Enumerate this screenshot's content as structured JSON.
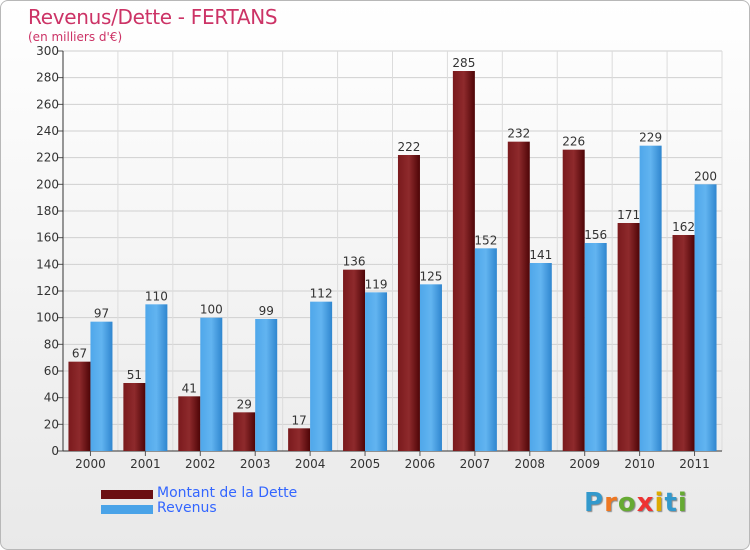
{
  "header": {
    "title": "Revenus/Dette - FERTANS",
    "subtitle": "(en milliers d'€)"
  },
  "chart_data": {
    "type": "bar",
    "categories": [
      "2000",
      "2001",
      "2002",
      "2003",
      "2004",
      "2005",
      "2006",
      "2007",
      "2008",
      "2009",
      "2010",
      "2011"
    ],
    "series": [
      {
        "name": "Montant de la Dette",
        "values": [
          67,
          51,
          41,
          29,
          17,
          136,
          222,
          285,
          232,
          226,
          171,
          162
        ],
        "color": "#6b0f12"
      },
      {
        "name": "Revenus",
        "values": [
          97,
          110,
          100,
          99,
          112,
          119,
          125,
          152,
          141,
          156,
          229,
          200
        ],
        "color": "#4aa3e8"
      }
    ],
    "ylim": [
      0,
      300
    ],
    "yticks": [
      0,
      20,
      40,
      60,
      80,
      100,
      120,
      140,
      160,
      180,
      200,
      220,
      240,
      260,
      280,
      300
    ],
    "grid": true,
    "legend_position": "bottom-left"
  },
  "legend": {
    "items": [
      {
        "label": "Montant de la Dette",
        "color": "#6b0f12"
      },
      {
        "label": "Revenus",
        "color": "#4aa3e8"
      }
    ]
  },
  "logo": {
    "letters": [
      "P",
      "r",
      "o",
      "x",
      "i",
      "t",
      "i"
    ],
    "colors": [
      "#3399cc",
      "#ee7722",
      "#66aa33",
      "#ee3333",
      "#ddaa00",
      "#3399cc",
      "#66aa33"
    ]
  }
}
